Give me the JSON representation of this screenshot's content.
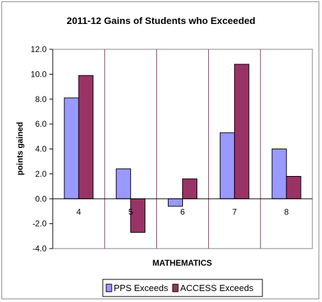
{
  "chart_data": {
    "type": "bar",
    "title": "2011-12 Gains of Students who Exceeded",
    "xlabel": "MATHEMATICS",
    "ylabel": "points gained",
    "categories": [
      "4",
      "5",
      "6",
      "7",
      "8"
    ],
    "series": [
      {
        "name": "PPS Exceeds",
        "color": "#9999ff",
        "values": [
          8.1,
          2.4,
          -0.6,
          5.3,
          4.0
        ]
      },
      {
        "name": "ACCESS Exceeds",
        "color": "#993366",
        "values": [
          9.9,
          -2.7,
          1.6,
          10.8,
          1.8
        ]
      }
    ],
    "ylim": [
      -4.0,
      12.0
    ],
    "yticks": [
      "12.0",
      "10.0",
      "8.0",
      "6.0",
      "4.0",
      "2.0",
      "0.0",
      "-2.0",
      "-4.0"
    ],
    "ytick_values": [
      12,
      10,
      8,
      6,
      4,
      2,
      0,
      -2,
      -4
    ],
    "plot_background": "#ffffff",
    "category_separator_color": "#993366",
    "grid": false,
    "legend_position": "bottom"
  }
}
